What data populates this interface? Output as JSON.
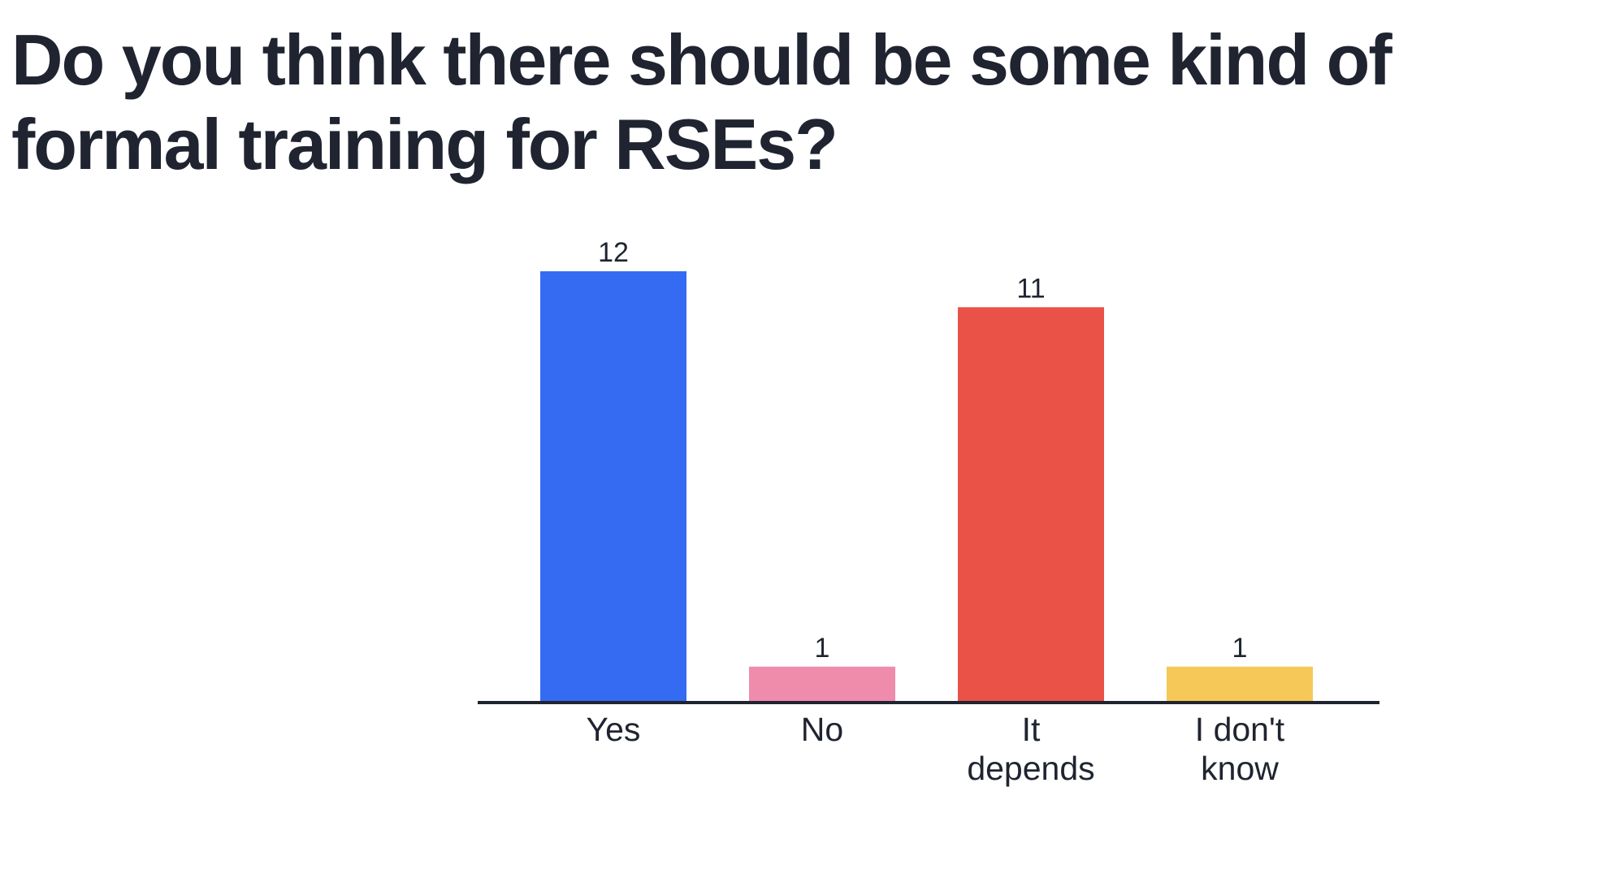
{
  "title": "Do you think there should be some kind of formal training for RSEs?",
  "chart_data": {
    "type": "bar",
    "categories": [
      [
        "Yes"
      ],
      [
        "No"
      ],
      [
        "It",
        "depends"
      ],
      [
        "I don't",
        "know"
      ]
    ],
    "values": [
      12,
      1,
      11,
      1
    ],
    "colors": [
      "#356bf3",
      "#ef8bab",
      "#ea5248",
      "#f5c857"
    ],
    "title": "Do you think there should be some kind of formal training for RSEs?",
    "xlabel": "",
    "ylabel": "",
    "ylim": [
      0,
      12
    ],
    "grid": false,
    "legend": "none"
  }
}
